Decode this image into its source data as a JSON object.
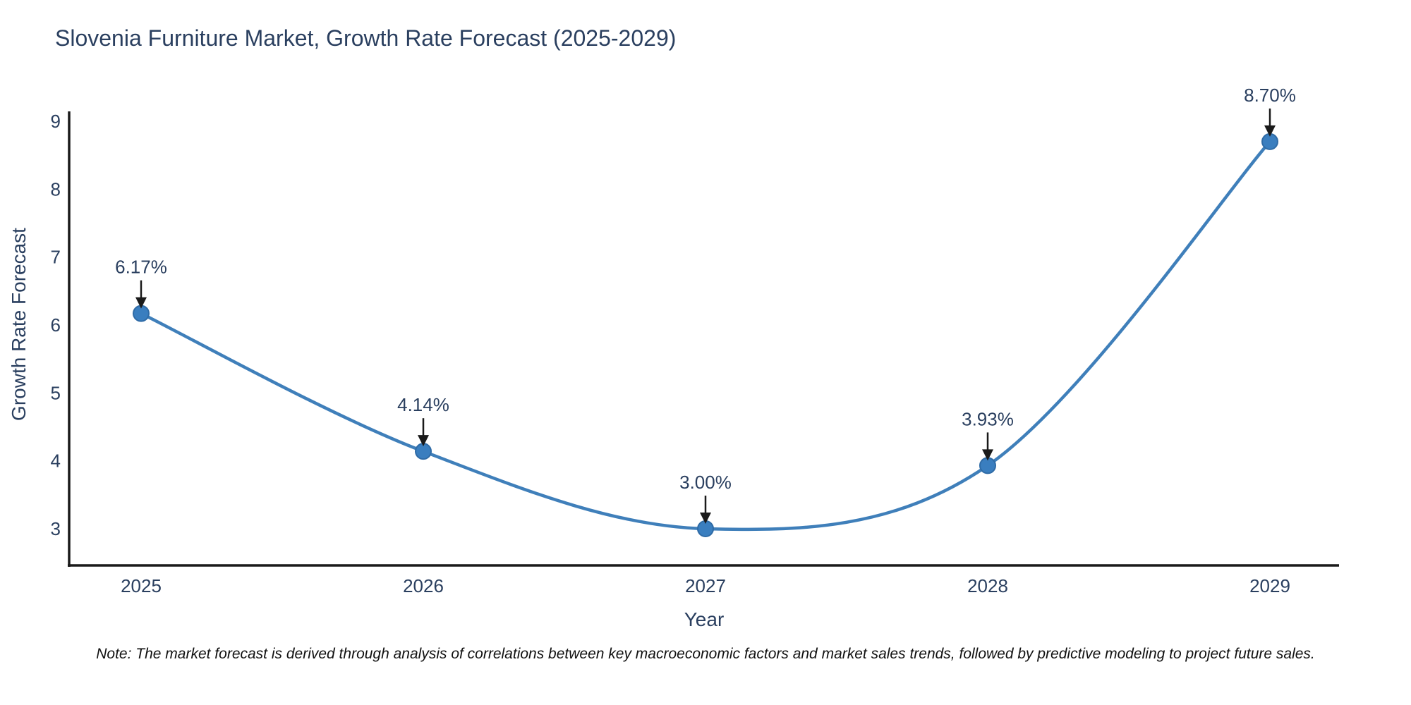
{
  "chart_data": {
    "type": "line",
    "title": "Slovenia Furniture Market, Growth Rate Forecast (2025-2029)",
    "xlabel": "Year",
    "ylabel": "Growth Rate Forecast",
    "categories": [
      2025,
      2026,
      2027,
      2028,
      2029
    ],
    "values": [
      6.17,
      4.14,
      3.0,
      3.93,
      8.7
    ],
    "point_labels": [
      "6.17%",
      "4.14%",
      "3.00%",
      "3.93%",
      "8.70%"
    ],
    "y_ticks": [
      3,
      4,
      5,
      6,
      7,
      8,
      9
    ],
    "ylim": [
      2.46,
      9.15
    ],
    "xlim": [
      2024.74,
      2029.25
    ],
    "line_shape": "spline",
    "grid": false,
    "legend": "none",
    "colors": {
      "line": "#3f7fba",
      "marker_fill": "#3a7ebf",
      "marker_edge": "#2f6ba6",
      "annotation_arrow": "#1a1a1a",
      "annotation_text": "#2a3f5f",
      "axis_line": "#1a1a1a",
      "tick_text": "#2a3f5f"
    }
  },
  "note": "Note: The market forecast is derived through analysis of correlations between key macroeconomic factors and market sales trends, followed by predictive modeling to project future sales."
}
